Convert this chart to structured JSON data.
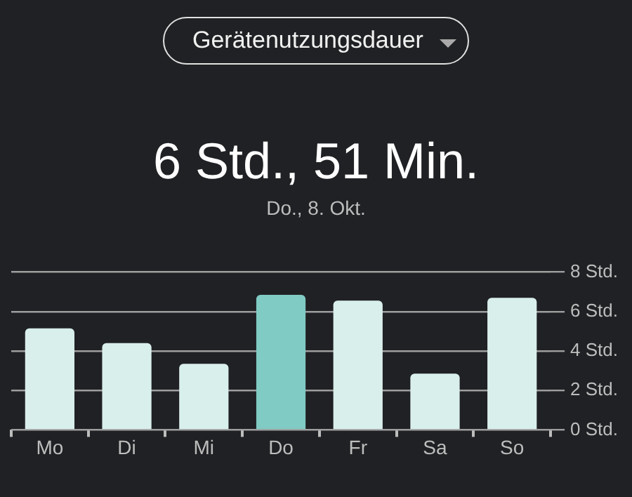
{
  "chart_data": {
    "type": "bar",
    "title": "6 Std., 51 Min.",
    "subtitle": "Do., 8. Okt.",
    "annotations": [
      "Gerätenutzungsdauer"
    ],
    "categories": [
      "Mo",
      "Di",
      "Mi",
      "Do",
      "Fr",
      "Sa",
      "So"
    ],
    "values": [
      5.15,
      4.4,
      3.35,
      6.85,
      6.55,
      2.85,
      6.7
    ],
    "colors": [
      "#d9efec",
      "#d9efec",
      "#d9efec",
      "#80cbc4",
      "#d9efec",
      "#d9efec",
      "#d9efec"
    ],
    "ylim": [
      0,
      8
    ],
    "yticks": [
      {
        "value": 0,
        "label": "0 Std."
      },
      {
        "value": 2,
        "label": "2 Std."
      },
      {
        "value": 4,
        "label": "4 Std."
      },
      {
        "value": 6,
        "label": "6 Std."
      },
      {
        "value": 8,
        "label": "8 Std."
      }
    ],
    "grid": "y"
  }
}
